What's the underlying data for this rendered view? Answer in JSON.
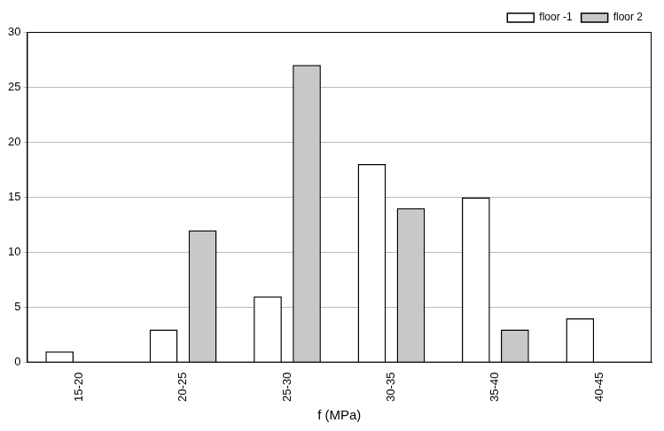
{
  "chart_data": {
    "type": "bar",
    "x_label": "f (MPa)",
    "categories": [
      "15-20",
      "20-25",
      "25-30",
      "30-35",
      "35-40",
      "40-45"
    ],
    "series": [
      {
        "name": "floor -1",
        "color": "#ffffff",
        "values": [
          1,
          3,
          6,
          18,
          15,
          4
        ]
      },
      {
        "name": "floor 2",
        "color": "#c8c8c8",
        "values": [
          0,
          12,
          27,
          14,
          3,
          0
        ]
      }
    ],
    "ylim": [
      0,
      30
    ],
    "yticks": [
      0,
      5,
      10,
      15,
      20,
      25,
      30
    ],
    "grid": true,
    "legend": "upper right"
  }
}
